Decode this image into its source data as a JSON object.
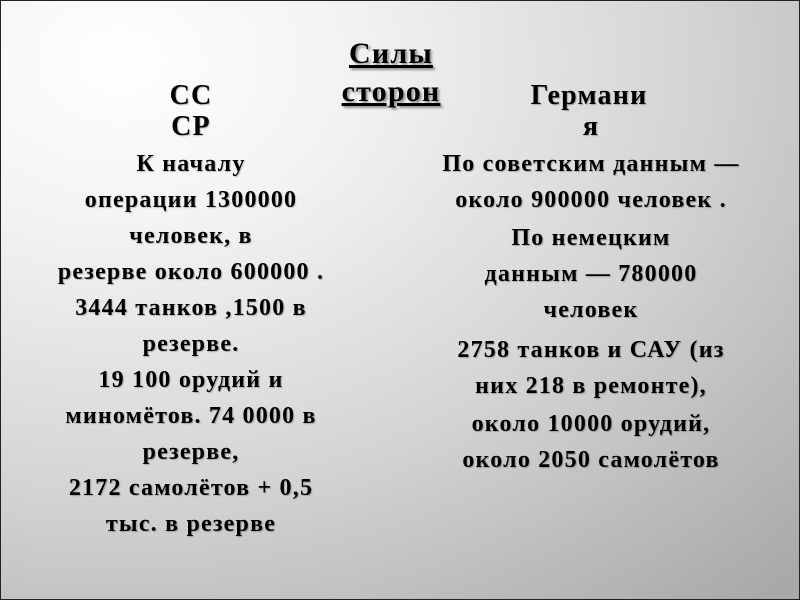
{
  "title": [
    "Силы",
    "сторон"
  ],
  "left": {
    "heading": [
      "СС",
      "СР"
    ],
    "lines": [
      "К началу",
      "операции 1300000",
      "человек,  в",
      "резерве около 600000 .",
      "3444 танков ,1500 в",
      "резерве.",
      "19 100 орудий и",
      "миномётов.  74 0000 в",
      "резерве,",
      "2172 самолётов + 0,5",
      "тыс. в резерве"
    ]
  },
  "right": {
    "heading": [
      "Германи",
      "я"
    ],
    "lines": [
      "По советским данным —",
      "около  900000 человек .",
      "По немецким",
      "данным — 780000",
      "человек",
      "2758 танков и САУ (из",
      "них 218 в ремонте),",
      "около  10000 орудий,",
      "около 2050 самолётов"
    ]
  }
}
